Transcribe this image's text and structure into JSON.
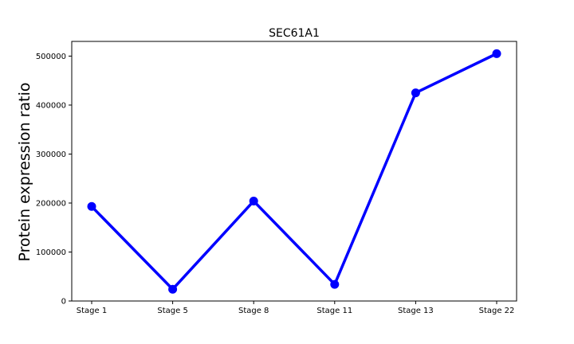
{
  "chart_data": {
    "type": "line",
    "title": "SEC61A1",
    "xlabel": "",
    "ylabel": "Protein expression ratio",
    "categories": [
      "Stage 1",
      "Stage 5",
      "Stage 8",
      "Stage 11",
      "Stage 13",
      "Stage 22"
    ],
    "series": [
      {
        "values": [
          193000,
          24000,
          204000,
          34000,
          425000,
          505000
        ]
      }
    ],
    "ylim": [
      0,
      530000
    ],
    "yticks": [
      0,
      100000,
      200000,
      300000,
      400000,
      500000
    ],
    "ytick_labels": [
      "0",
      "100000",
      "200000",
      "300000",
      "400000",
      "500000"
    ],
    "grid": false,
    "legend": "none",
    "colors": {
      "line": "#0000ff",
      "marker": "#0000ff",
      "axes": "#000000"
    }
  }
}
